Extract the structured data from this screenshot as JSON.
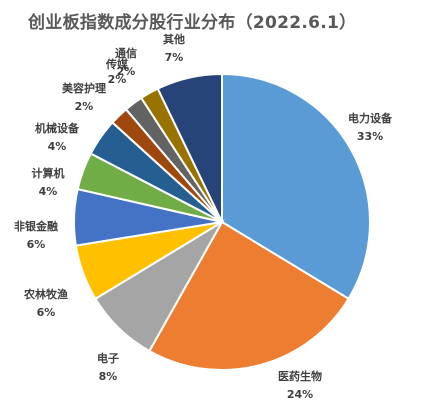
{
  "chart_data": {
    "type": "pie",
    "title": "创业板指数成分股行业分布（2022.6.1）",
    "start_angle_deg": 0,
    "direction": "clockwise",
    "slices": [
      {
        "label": "电力设备",
        "value": 33,
        "pct_text": "33%",
        "color": "#5b9bd5"
      },
      {
        "label": "医药生物",
        "value": 24,
        "pct_text": "24%",
        "color": "#ed7d31"
      },
      {
        "label": "电子",
        "value": 8,
        "pct_text": "8%",
        "color": "#a5a5a5"
      },
      {
        "label": "农林牧渔",
        "value": 6,
        "pct_text": "6%",
        "color": "#ffc000"
      },
      {
        "label": "非银金融",
        "value": 6,
        "pct_text": "6%",
        "color": "#4472c4"
      },
      {
        "label": "计算机",
        "value": 4,
        "pct_text": "4%",
        "color": "#70ad47"
      },
      {
        "label": "机械设备",
        "value": 4,
        "pct_text": "4%",
        "color": "#255e91"
      },
      {
        "label": "美容护理",
        "value": 2,
        "pct_text": "2%",
        "color": "#9e480e"
      },
      {
        "label": "传媒",
        "value": 2,
        "pct_text": "2%",
        "color": "#636363"
      },
      {
        "label": "通信",
        "value": 2,
        "pct_text": "2%",
        "color": "#997300"
      },
      {
        "label": "其他",
        "value": 7,
        "pct_text": "7%",
        "color": "#264478"
      }
    ]
  }
}
